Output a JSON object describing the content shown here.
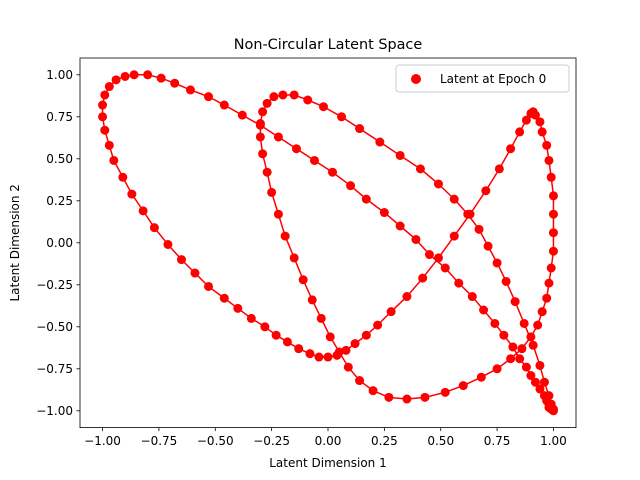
{
  "chart_data": {
    "type": "scatter",
    "title": "Non-Circular Latent Space",
    "xlabel": "Latent Dimension 1",
    "ylabel": "Latent Dimension 2",
    "xlim": [
      -1.1,
      1.1
    ],
    "ylim": [
      -1.1,
      1.1
    ],
    "xticks": [
      "−1.00",
      "−0.75",
      "−0.50",
      "−0.25",
      "0.00",
      "0.25",
      "0.50",
      "0.75",
      "1.00"
    ],
    "yticks": [
      "−1.00",
      "−0.75",
      "−0.50",
      "−0.25",
      "0.00",
      "0.25",
      "0.50",
      "0.75",
      "1.00"
    ],
    "grid": false,
    "legend_position": "top-right",
    "series": [
      {
        "name": "Latent at Epoch 0",
        "color": "#ff0000",
        "connected": true,
        "points": [
          [
            1.0,
            -1.0
          ],
          [
            0.99,
            -0.99
          ],
          [
            0.98,
            -0.98
          ],
          [
            0.98,
            -0.96
          ],
          [
            0.97,
            -0.94
          ],
          [
            0.96,
            -0.91
          ],
          [
            0.94,
            -0.87
          ],
          [
            0.92,
            -0.83
          ],
          [
            0.9,
            -0.79
          ],
          [
            0.88,
            -0.74
          ],
          [
            0.85,
            -0.69
          ],
          [
            0.82,
            -0.62
          ],
          [
            0.78,
            -0.55
          ],
          [
            0.74,
            -0.48
          ],
          [
            0.69,
            -0.4
          ],
          [
            0.64,
            -0.32
          ],
          [
            0.58,
            -0.24
          ],
          [
            0.52,
            -0.15
          ],
          [
            0.45,
            -0.07
          ],
          [
            0.39,
            0.02
          ],
          [
            0.32,
            0.1
          ],
          [
            0.25,
            0.18
          ],
          [
            0.17,
            0.26
          ],
          [
            0.1,
            0.34
          ],
          [
            0.02,
            0.42
          ],
          [
            -0.06,
            0.49
          ],
          [
            -0.14,
            0.56
          ],
          [
            -0.22,
            0.63
          ],
          [
            -0.3,
            0.7
          ],
          [
            -0.38,
            0.76
          ],
          [
            -0.46,
            0.82
          ],
          [
            -0.53,
            0.87
          ],
          [
            -0.61,
            0.91
          ],
          [
            -0.68,
            0.95
          ],
          [
            -0.74,
            0.98
          ],
          [
            -0.8,
            1.0
          ],
          [
            -0.86,
            1.0
          ],
          [
            -0.9,
            0.99
          ],
          [
            -0.94,
            0.97
          ],
          [
            -0.97,
            0.93
          ],
          [
            -0.99,
            0.88
          ],
          [
            -1.0,
            0.82
          ],
          [
            -1.0,
            0.75
          ],
          [
            -0.99,
            0.67
          ],
          [
            -0.97,
            0.58
          ],
          [
            -0.95,
            0.49
          ],
          [
            -0.91,
            0.39
          ],
          [
            -0.87,
            0.29
          ],
          [
            -0.82,
            0.19
          ],
          [
            -0.77,
            0.09
          ],
          [
            -0.71,
            -0.01
          ],
          [
            -0.65,
            -0.1
          ],
          [
            -0.59,
            -0.18
          ],
          [
            -0.53,
            -0.26
          ],
          [
            -0.46,
            -0.33
          ],
          [
            -0.4,
            -0.39
          ],
          [
            -0.34,
            -0.45
          ],
          [
            -0.28,
            -0.5
          ],
          [
            -0.23,
            -0.55
          ],
          [
            -0.18,
            -0.59
          ],
          [
            -0.13,
            -0.63
          ],
          [
            -0.08,
            -0.66
          ],
          [
            -0.04,
            -0.68
          ],
          [
            0.0,
            -0.68
          ],
          [
            0.04,
            -0.67
          ],
          [
            0.08,
            -0.64
          ],
          [
            0.12,
            -0.6
          ],
          [
            0.17,
            -0.55
          ],
          [
            0.22,
            -0.49
          ],
          [
            0.28,
            -0.41
          ],
          [
            0.35,
            -0.32
          ],
          [
            0.42,
            -0.21
          ],
          [
            0.49,
            -0.09
          ],
          [
            0.56,
            0.04
          ],
          [
            0.63,
            0.17
          ],
          [
            0.7,
            0.31
          ],
          [
            0.76,
            0.44
          ],
          [
            0.81,
            0.56
          ],
          [
            0.85,
            0.66
          ],
          [
            0.88,
            0.73
          ],
          [
            0.9,
            0.77
          ],
          [
            0.91,
            0.78
          ],
          [
            0.92,
            0.76
          ],
          [
            0.94,
            0.72
          ],
          [
            0.95,
            0.66
          ],
          [
            0.97,
            0.58
          ],
          [
            0.98,
            0.49
          ],
          [
            0.99,
            0.39
          ],
          [
            1.0,
            0.28
          ],
          [
            1.0,
            0.17
          ],
          [
            1.0,
            0.06
          ],
          [
            1.0,
            -0.05
          ],
          [
            0.99,
            -0.15
          ],
          [
            0.98,
            -0.24
          ],
          [
            0.97,
            -0.33
          ],
          [
            0.95,
            -0.41
          ],
          [
            0.93,
            -0.49
          ],
          [
            0.9,
            -0.56
          ],
          [
            0.86,
            -0.63
          ],
          [
            0.81,
            -0.69
          ],
          [
            0.75,
            -0.75
          ],
          [
            0.68,
            -0.8
          ],
          [
            0.6,
            -0.85
          ],
          [
            0.52,
            -0.89
          ],
          [
            0.43,
            -0.92
          ],
          [
            0.35,
            -0.93
          ],
          [
            0.27,
            -0.92
          ],
          [
            0.2,
            -0.88
          ],
          [
            0.14,
            -0.82
          ],
          [
            0.09,
            -0.74
          ],
          [
            0.05,
            -0.65
          ],
          [
            0.01,
            -0.56
          ],
          [
            -0.03,
            -0.45
          ],
          [
            -0.07,
            -0.34
          ],
          [
            -0.11,
            -0.22
          ],
          [
            -0.15,
            -0.09
          ],
          [
            -0.19,
            0.04
          ],
          [
            -0.22,
            0.17
          ],
          [
            -0.25,
            0.3
          ],
          [
            -0.27,
            0.42
          ],
          [
            -0.29,
            0.53
          ],
          [
            -0.3,
            0.63
          ],
          [
            -0.3,
            0.71
          ],
          [
            -0.29,
            0.78
          ],
          [
            -0.27,
            0.83
          ],
          [
            -0.24,
            0.87
          ],
          [
            -0.2,
            0.88
          ],
          [
            -0.15,
            0.88
          ],
          [
            -0.09,
            0.85
          ],
          [
            -0.02,
            0.81
          ],
          [
            0.06,
            0.75
          ],
          [
            0.14,
            0.68
          ],
          [
            0.23,
            0.6
          ],
          [
            0.32,
            0.52
          ],
          [
            0.41,
            0.44
          ],
          [
            0.49,
            0.35
          ],
          [
            0.56,
            0.26
          ],
          [
            0.62,
            0.17
          ],
          [
            0.67,
            0.08
          ],
          [
            0.71,
            -0.02
          ],
          [
            0.75,
            -0.12
          ],
          [
            0.79,
            -0.23
          ],
          [
            0.83,
            -0.35
          ],
          [
            0.87,
            -0.48
          ],
          [
            0.91,
            -0.61
          ],
          [
            0.94,
            -0.73
          ],
          [
            0.96,
            -0.83
          ],
          [
            0.98,
            -0.91
          ],
          [
            0.99,
            -0.96
          ],
          [
            1.0,
            -0.99
          ]
        ]
      }
    ]
  }
}
